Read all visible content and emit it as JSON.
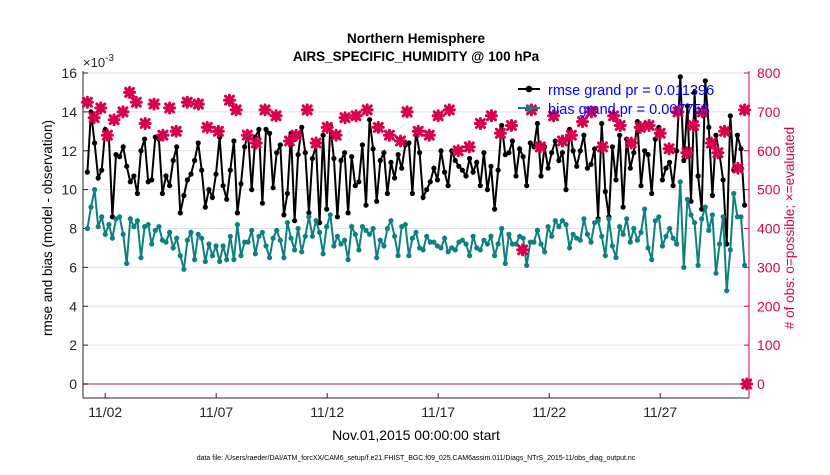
{
  "figure": {
    "title_line1": "Northern Hemisphere",
    "title_line2": "AIRS_SPECIFIC_HUMIDITY @ 100 hPa",
    "footer": "data file: /Users/raeder/DAI/ATM_forcXX/CAM6_setup/f.e21.FHIST_BGC.f09_025.CAM6assim.011/Diags_NTrS_2015-11/obs_diag_output.nc",
    "colors": {
      "rmse": "#000000",
      "bias": "#0f8080",
      "obs": "#d6004d",
      "legend_text": "#0000ff",
      "axis": "#262626",
      "grid": "#e0e0e0",
      "zero_line": "#b86b8e"
    }
  },
  "chart_data": {
    "type": "line",
    "title": "Northern Hemisphere",
    "subtitle": "AIRS_SPECIFIC_HUMIDITY @ 100 hPa",
    "xlabel": "Nov.01,2015 00:00:00 start",
    "ylabel_left": "rmse and bias (model - observation)",
    "ylabel_right": "# of obs: o=possible; ×=evaluated",
    "left_exponent_prefix": "×10",
    "left_exponent": "-3",
    "x_tick_labels": [
      "11/02",
      "11/07",
      "11/12",
      "11/17",
      "11/22",
      "11/27"
    ],
    "x_tick_days": [
      2,
      7,
      12,
      17,
      22,
      27
    ],
    "xlim": [
      1.0,
      31.0
    ],
    "y_left_ticks": [
      "0",
      "2",
      "4",
      "6",
      "8",
      "10",
      "12",
      "14",
      "16"
    ],
    "ylim_left": [
      0,
      16
    ],
    "y_right_ticks": [
      "0",
      "100",
      "200",
      "300",
      "400",
      "500",
      "600",
      "700",
      "800"
    ],
    "ylim_right": [
      0,
      800
    ],
    "grid": "horizontal",
    "legend_placement": "top-right",
    "series": [
      {
        "name": "rmse grand pr = 0.011396",
        "axis": "left",
        "marker": "circle",
        "values": [
          10.9,
          14.0,
          12.4,
          10.6,
          11.0,
          13.1,
          12.7,
          8.6,
          11.8,
          11.7,
          12.2,
          11.2,
          10.4,
          10.7,
          9.8,
          12.0,
          12.6,
          10.4,
          10.5,
          12.7,
          12.6,
          9.8,
          10.7,
          10.2,
          11.5,
          12.2,
          8.8,
          9.7,
          10.5,
          10.8,
          11.5,
          12.4,
          11.0,
          9.1,
          10.0,
          9.6,
          10.8,
          12.7,
          10.2,
          9.5,
          11.0,
          12.5,
          8.8,
          10.3,
          12.2,
          12.9,
          10.0,
          12.7,
          13.1,
          9.3,
          13.1,
          12.9,
          10.1,
          11.9,
          12.3,
          8.7,
          9.8,
          12.9,
          8.4,
          11.8,
          13.2,
          11.9,
          8.8,
          11.6,
          12.3,
          8.3,
          12.8,
          9.0,
          13.3,
          11.6,
          8.6,
          11.5,
          11.9,
          8.8,
          11.7,
          10.2,
          10.4,
          12.3,
          9.2,
          13.6,
          12.1,
          9.4,
          11.5,
          11.9,
          9.8,
          11.4,
          10.6,
          11.8,
          11.1,
          12.3,
          12.4,
          9.8,
          13.0,
          11.9,
          9.6,
          10.0,
          10.4,
          11.1,
          10.5,
          12.0,
          10.9,
          10.2,
          12.0,
          11.5,
          11.2,
          11.0,
          10.7,
          11.6,
          10.9,
          11.4,
          10.2,
          11.9,
          10.0,
          11.2,
          9.0,
          11.0,
          13.3,
          11.8,
          11.9,
          12.5,
          10.7,
          12.1,
          11.7,
          10.2,
          12.4,
          12.2,
          13.4,
          10.7,
          12.2,
          11.1,
          11.9,
          12.5,
          11.5,
          11.9,
          10.0,
          13.1,
          12.0,
          11.2,
          12.0,
          12.8,
          11.1,
          11.3,
          12.1,
          8.5,
          13.4,
          9.9,
          8.6,
          12.2,
          10.5,
          12.8,
          9.1,
          12.6,
          11.1,
          11.9,
          13.5,
          10.2,
          12.0,
          11.8,
          9.8,
          12.6,
          13.2,
          10.5,
          11.1,
          11.4,
          10.2,
          12.0,
          15.8,
          11.5,
          14.3,
          9.4,
          15.0,
          10.7,
          9.0,
          15.6,
          13.2,
          9.7,
          12.8,
          11.8,
          10.5,
          7.2,
          13.8,
          11.0,
          12.8,
          12.1,
          9.2
        ]
      },
      {
        "name": "bias grand pr = 0.007755",
        "axis": "left",
        "marker": "circle",
        "values": [
          8.0,
          9.1,
          10.0,
          8.1,
          8.6,
          7.7,
          8.2,
          7.5,
          8.5,
          8.6,
          7.7,
          6.2,
          8.5,
          8.1,
          8.4,
          6.5,
          8.1,
          8.2,
          7.2,
          7.9,
          8.1,
          7.4,
          7.3,
          7.8,
          7.0,
          7.5,
          6.6,
          5.9,
          7.4,
          7.8,
          6.4,
          7.7,
          7.5,
          6.3,
          7.2,
          6.6,
          7.1,
          6.3,
          7.1,
          6.4,
          7.6,
          6.4,
          8.2,
          6.6,
          7.3,
          7.3,
          7.9,
          6.7,
          7.6,
          7.8,
          7.1,
          6.5,
          7.5,
          7.9,
          7.4,
          6.5,
          8.3,
          7.5,
          6.9,
          8.0,
          6.8,
          7.6,
          8.6,
          7.6,
          8.4,
          7.8,
          6.7,
          8.1,
          8.7,
          7.1,
          7.6,
          7.2,
          7.4,
          6.4,
          8.1,
          7.7,
          6.9,
          8.1,
          7.9,
          7.7,
          8.0,
          6.5,
          7.4,
          7.1,
          8.0,
          8.4,
          7.6,
          6.6,
          8.1,
          8.2,
          6.6,
          7.5,
          7.8,
          7.0,
          6.9,
          7.6,
          7.3,
          7.3,
          7.1,
          7.0,
          7.5,
          6.8,
          7.0,
          6.9,
          7.3,
          7.4,
          7.2,
          6.6,
          7.6,
          7.0,
          6.9,
          7.4,
          7.2,
          7.6,
          6.6,
          7.2,
          8.0,
          6.2,
          7.7,
          7.2,
          7.2,
          7.6,
          7.5,
          6.1,
          7.3,
          7.3,
          7.9,
          7.2,
          6.8,
          8.1,
          7.6,
          8.4,
          8.1,
          8.4,
          8.2,
          7.0,
          7.7,
          7.5,
          7.4,
          8.5,
          7.7,
          7.3,
          8.3,
          8.4,
          7.6,
          6.6,
          8.5,
          7.1,
          6.5,
          8.1,
          7.7,
          8.5,
          7.3,
          8.0,
          7.4,
          7.8,
          9.0,
          7.0,
          6.4,
          8.4,
          8.6,
          7.1,
          7.6,
          8.0,
          7.5,
          7.2,
          10.4,
          6.0,
          9.5,
          8.7,
          8.3,
          6.1,
          8.5,
          9.1,
          7.9,
          8.7,
          5.7,
          7.2,
          8.6,
          4.8,
          6.9,
          9.8,
          8.6,
          8.6,
          6.1
        ]
      },
      {
        "name": "# of obs",
        "axis": "right",
        "marker": "x",
        "points": [
          [
            1.2,
            725
          ],
          [
            1.5,
            685
          ],
          [
            1.8,
            710
          ],
          [
            2.1,
            640
          ],
          [
            2.4,
            680
          ],
          [
            2.8,
            700
          ],
          [
            3.1,
            750
          ],
          [
            3.4,
            725
          ],
          [
            3.8,
            670
          ],
          [
            4.2,
            720
          ],
          [
            4.6,
            640
          ],
          [
            4.9,
            710
          ],
          [
            5.2,
            650
          ],
          [
            5.7,
            725
          ],
          [
            6.2,
            720
          ],
          [
            6.6,
            660
          ],
          [
            7.1,
            650
          ],
          [
            7.6,
            730
          ],
          [
            7.9,
            705
          ],
          [
            8.4,
            640
          ],
          [
            8.8,
            620
          ],
          [
            9.2,
            705
          ],
          [
            9.7,
            690
          ],
          [
            10.3,
            625
          ],
          [
            10.6,
            640
          ],
          [
            11.1,
            705
          ],
          [
            11.5,
            620
          ],
          [
            12.0,
            660
          ],
          [
            12.4,
            640
          ],
          [
            12.8,
            685
          ],
          [
            13.3,
            690
          ],
          [
            13.8,
            705
          ],
          [
            14.3,
            660
          ],
          [
            14.8,
            640
          ],
          [
            15.3,
            625
          ],
          [
            15.6,
            700
          ],
          [
            16.1,
            650
          ],
          [
            16.6,
            640
          ],
          [
            17.0,
            690
          ],
          [
            17.5,
            705
          ],
          [
            17.9,
            600
          ],
          [
            18.4,
            610
          ],
          [
            18.9,
            670
          ],
          [
            19.4,
            690
          ],
          [
            19.8,
            645
          ],
          [
            20.3,
            665
          ],
          [
            20.8,
            345
          ],
          [
            21.2,
            705
          ],
          [
            21.6,
            610
          ],
          [
            22.2,
            690
          ],
          [
            22.6,
            625
          ],
          [
            23.0,
            640
          ],
          [
            23.5,
            675
          ],
          [
            23.9,
            700
          ],
          [
            24.4,
            610
          ],
          [
            24.9,
            690
          ],
          [
            25.2,
            665
          ],
          [
            25.7,
            620
          ],
          [
            26.1,
            660
          ],
          [
            26.5,
            665
          ],
          [
            27.0,
            645
          ],
          [
            27.4,
            605
          ],
          [
            27.8,
            700
          ],
          [
            28.2,
            595
          ],
          [
            28.5,
            665
          ],
          [
            28.9,
            700
          ],
          [
            29.3,
            620
          ],
          [
            29.6,
            595
          ],
          [
            29.9,
            650
          ],
          [
            30.5,
            555
          ],
          [
            30.8,
            705
          ],
          [
            30.9,
            0
          ]
        ]
      }
    ]
  }
}
